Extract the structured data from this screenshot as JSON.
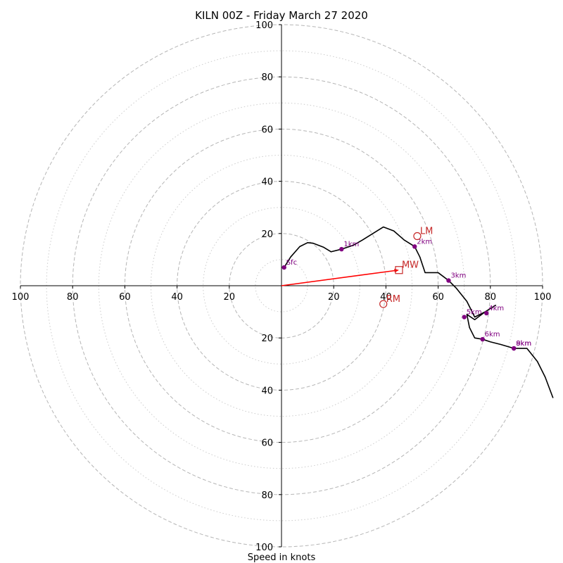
{
  "chart_data": {
    "type": "hodograph",
    "title": "KILN 00Z - Friday March 27 2020",
    "xlabel": "Speed in knots",
    "axis_range": [
      -100,
      100
    ],
    "axis_tick_labels": [
      "100",
      "80",
      "60",
      "40",
      "20",
      "20",
      "40",
      "60",
      "80",
      "100"
    ],
    "axis_ticks": [
      -100,
      -80,
      -60,
      -40,
      -20,
      20,
      40,
      60,
      80,
      100
    ],
    "rings": {
      "dashed_radii_kt": [
        20,
        40,
        60,
        80,
        100
      ],
      "dotted_radii_kt": [
        10,
        30,
        50,
        70,
        90
      ]
    },
    "wind_profile": {
      "color": "#000000",
      "points": [
        [
          1,
          7
        ],
        [
          3.5,
          11
        ],
        [
          7,
          15
        ],
        [
          10,
          16.5
        ],
        [
          12,
          16.3
        ],
        [
          16,
          14.8
        ],
        [
          19,
          13
        ],
        [
          23,
          14
        ],
        [
          27.5,
          15.5
        ],
        [
          31,
          17.5
        ],
        [
          35,
          20
        ],
        [
          39,
          22.5
        ],
        [
          43,
          21
        ],
        [
          47,
          17.5
        ],
        [
          51,
          15
        ],
        [
          53,
          11
        ],
        [
          54,
          8
        ],
        [
          55,
          5
        ],
        [
          60,
          5
        ],
        [
          64,
          2
        ],
        [
          67,
          -1
        ],
        [
          71,
          -6
        ],
        [
          74,
          -12
        ],
        [
          78,
          -10
        ],
        [
          82,
          -7.5
        ],
        [
          78,
          -10
        ],
        [
          74,
          -13
        ],
        [
          71,
          -11
        ],
        [
          72,
          -16
        ],
        [
          74,
          -20
        ],
        [
          77,
          -20.5
        ],
        [
          80,
          -21.5
        ],
        [
          84,
          -22.5
        ],
        [
          89,
          -24
        ],
        [
          94,
          -24
        ],
        [
          98,
          -29
        ],
        [
          101,
          -35
        ],
        [
          104,
          -43
        ]
      ]
    },
    "height_markers": {
      "color": "#800080",
      "points": [
        {
          "label": "Sfc",
          "x": 1,
          "y": 7
        },
        {
          "label": "1km",
          "x": 23,
          "y": 14
        },
        {
          "label": "2km",
          "x": 51,
          "y": 15
        },
        {
          "label": "3km",
          "x": 64,
          "y": 2
        },
        {
          "label": "4km",
          "x": 78.5,
          "y": -10.5
        },
        {
          "label": "5km",
          "x": 70,
          "y": -12
        },
        {
          "label": "6km",
          "x": 77,
          "y": -20.5
        },
        {
          "label": "8km",
          "x": 89,
          "y": -24
        },
        {
          "label": "9km",
          "x": 89,
          "y": -24
        }
      ]
    },
    "motion_markers": {
      "color": "#c62828",
      "points": [
        {
          "label": "LM",
          "x": 52,
          "y": 19,
          "shape": "circle"
        },
        {
          "label": "RM",
          "x": 39,
          "y": -7,
          "shape": "circle"
        },
        {
          "label": "MW",
          "x": 45,
          "y": 6,
          "shape": "square"
        }
      ]
    },
    "storm_vector": {
      "color": "#ff0000",
      "x": 45,
      "y": 6
    }
  }
}
